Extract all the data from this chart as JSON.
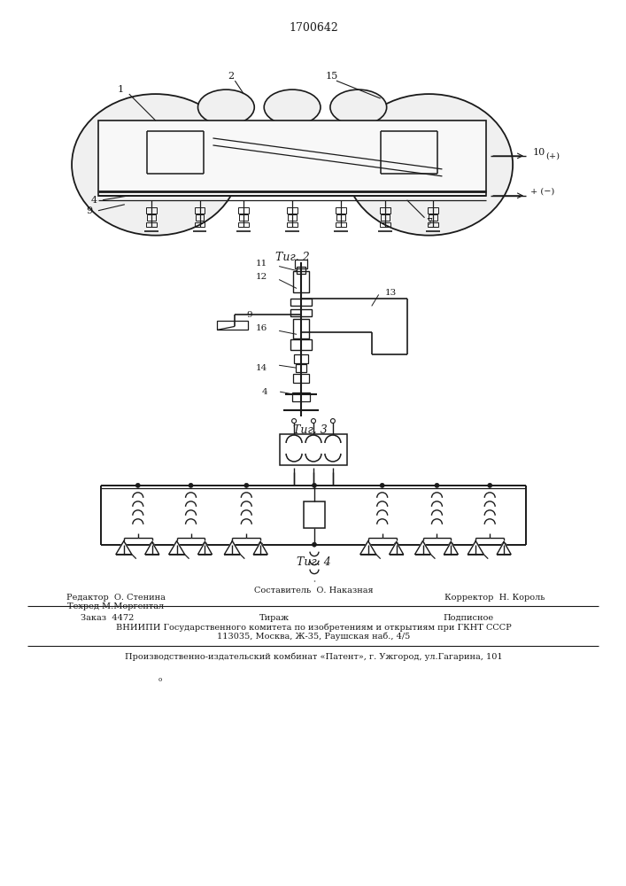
{
  "patent_number": "1700642",
  "bg_color": "#ffffff",
  "line_color": "#1a1a1a",
  "fig2_caption": "Τиг. 2",
  "fig3_caption": "Τиг. 3",
  "fig4_caption": "Τиг. 4",
  "label_1": "1",
  "label_2": "2",
  "label_4": "4",
  "label_7": "7",
  "label_9": "9",
  "label_10": "10",
  "label_11": "11",
  "label_12": "12",
  "label_13": "13",
  "label_14": "14",
  "label_15": "15",
  "label_16": "16",
  "label_plus_pos": "(+)",
  "label_plus_neg": "+ (−)",
  "footer_left1": "Редактор  О. Стенина",
  "footer_center1": "Составитель  О. Наказная",
  "footer_right1": "Корректор  Н. Король",
  "footer_left2": "Техред М.Моргентал",
  "footer_col1": "Заказ  4472",
  "footer_col2": "Тираж",
  "footer_col3": "Подписное",
  "footer_vniiipi": "ВНИИПИ Государственного комитета по изобретениям и открытиям при ГКНТ СССР",
  "footer_address": "113035, Москва, Ж-35, Раушская наб., 4/5",
  "footer_publisher": "Производственно-издательский комбинат «Патент», г. Ужгород, ул.Гагарина, 101"
}
